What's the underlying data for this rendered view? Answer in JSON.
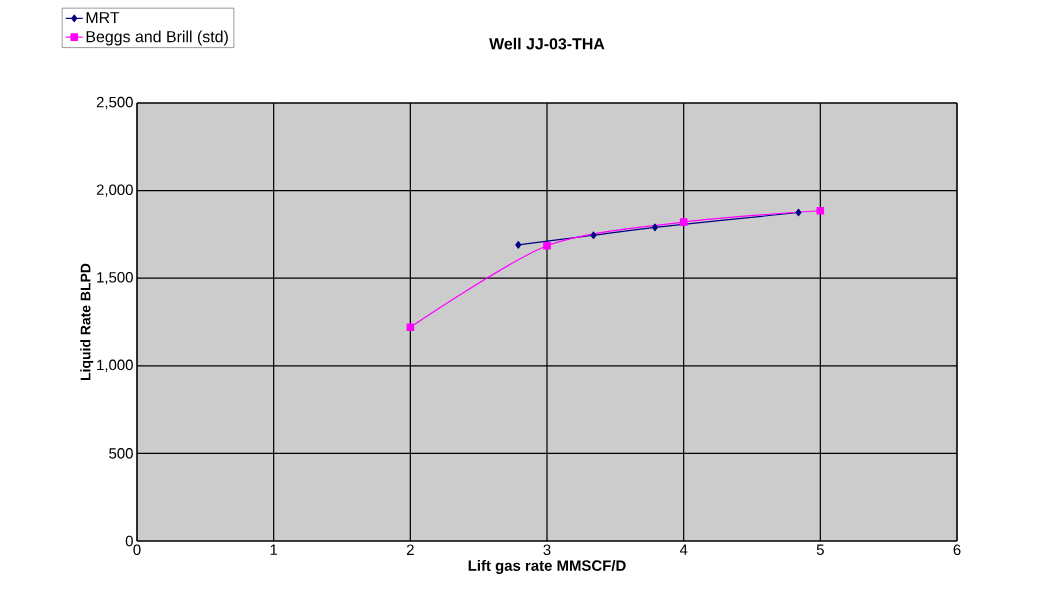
{
  "chart_data": {
    "type": "line",
    "title": "Well JJ-03-THA",
    "xlabel": "Lift gas rate MMSCF/D",
    "ylabel": "Liquid Rate BLPD",
    "xlim": [
      0,
      6
    ],
    "xticks": [
      0,
      1,
      2,
      3,
      4,
      5,
      6
    ],
    "ylim": [
      0,
      2500
    ],
    "yticks": [
      0,
      500,
      {
        "value": 1000,
        "label": "1,000"
      },
      {
        "value": 1500,
        "label": "1,500"
      },
      {
        "value": 2000,
        "label": "2,000"
      },
      {
        "value": 2500,
        "label": "2,500"
      }
    ],
    "grid": true,
    "legend": "top left",
    "line_style": "solid",
    "series": [
      {
        "name": "MRT",
        "color": "#000080",
        "marker": "diamond",
        "x": [
          2.79,
          3.34,
          3.79,
          4.84
        ],
        "values": [
          1690,
          1745,
          1790,
          1875
        ]
      },
      {
        "name": "Beggs and Brill (std)",
        "color": "#ff00ff",
        "marker": "square",
        "x": [
          2,
          3,
          4,
          5
        ],
        "values": [
          1220,
          1685,
          1820,
          1885
        ]
      }
    ]
  }
}
